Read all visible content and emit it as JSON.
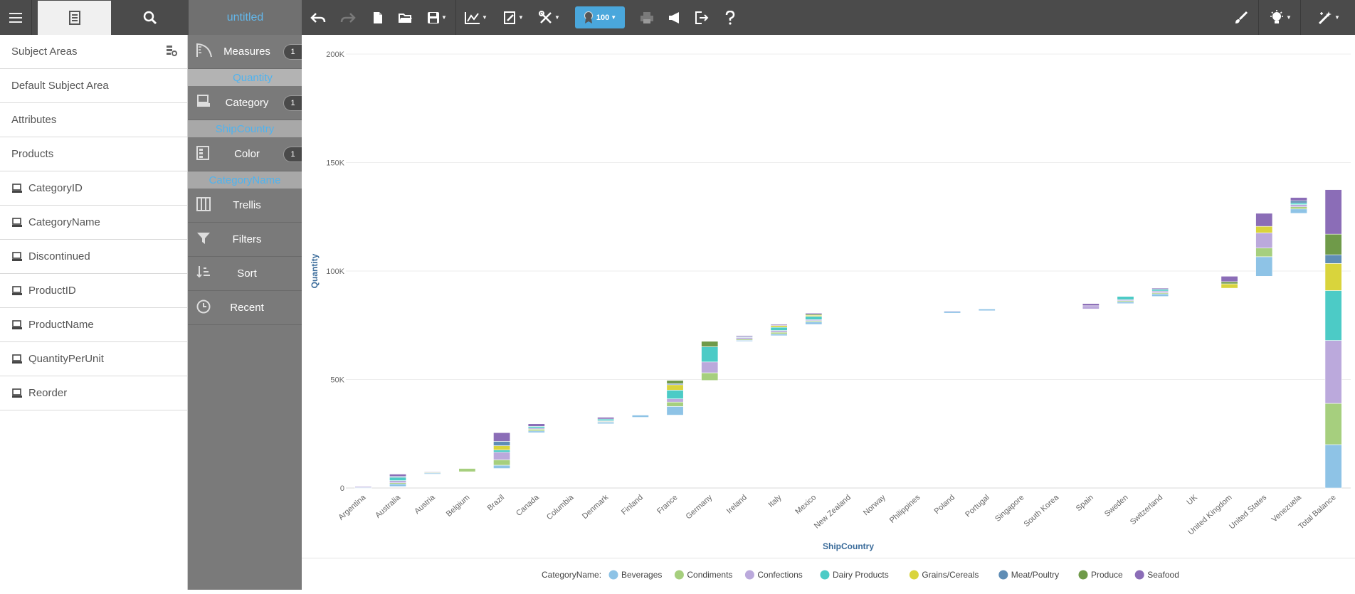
{
  "toolbar": {
    "title": "untitled",
    "badge_value": "100"
  },
  "left_panel": {
    "items": [
      {
        "label": "Subject Areas",
        "icon": "settings-gear-icon"
      },
      {
        "label": "Default Subject Area"
      },
      {
        "label": "Attributes"
      },
      {
        "label": "Products"
      },
      {
        "label": "CategoryID",
        "icon": "field-icon"
      },
      {
        "label": "CategoryName",
        "icon": "field-icon"
      },
      {
        "label": "Discontinued",
        "icon": "field-icon"
      },
      {
        "label": "ProductID",
        "icon": "field-icon"
      },
      {
        "label": "ProductName",
        "icon": "field-icon"
      },
      {
        "label": "QuantityPerUnit",
        "icon": "field-icon"
      },
      {
        "label": "Reorder",
        "icon": "field-icon"
      }
    ]
  },
  "shelves": {
    "measures": {
      "label": "Measures",
      "count": "1",
      "chip": "Quantity"
    },
    "category": {
      "label": "Category",
      "count": "1",
      "chip": "ShipCountry"
    },
    "color": {
      "label": "Color",
      "count": "1",
      "chip": "CategoryName"
    },
    "trellis": {
      "label": "Trellis"
    },
    "filters": {
      "label": "Filters"
    },
    "sort": {
      "label": "Sort"
    },
    "recent": {
      "label": "Recent"
    }
  },
  "colors": {
    "Beverages": "#8ec3e6",
    "Condiments": "#a6cf7e",
    "Confections": "#bba9dc",
    "Dairy Products": "#4ccbc6",
    "Grains/Cereals": "#d9d43c",
    "Meat/Poultry": "#5f8db5",
    "Produce": "#6f9a49",
    "Seafood": "#8b6db7",
    "accent": "#4aa7dc"
  },
  "chart_data": {
    "type": "bar",
    "subtype": "waterfall-stacked",
    "xlabel": "ShipCountry",
    "ylabel": "Quantity",
    "ylim": [
      0,
      200000
    ],
    "yticks": [
      "0",
      "50K",
      "100K",
      "150K",
      "200K"
    ],
    "grid": true,
    "legend_title": "CategoryName:",
    "legend_position": "bottom",
    "categories": [
      "Argentina",
      "Australia",
      "Austria",
      "Belgium",
      "Brazil",
      "Canada",
      "Columbia",
      "Denmark",
      "Finland",
      "France",
      "Germany",
      "Ireland",
      "Italy",
      "Mexico",
      "New Zealand",
      "Norway",
      "Philippines",
      "Poland",
      "Portugal",
      "Singapore",
      "South Korea",
      "Spain",
      "Sweden",
      "Switzerland",
      "UK",
      "United Kingdom",
      "United States",
      "Venezuela",
      "Total Balance"
    ],
    "series": [
      {
        "name": "Beverages",
        "values": [
          200,
          1200,
          500,
          0,
          1500,
          800,
          0,
          800,
          1000,
          4000,
          0,
          500,
          800,
          1200,
          0,
          0,
          0,
          800,
          800,
          0,
          0,
          0,
          800,
          1200,
          0,
          0,
          9000,
          2000,
          20000
        ]
      },
      {
        "name": "Condiments",
        "values": [
          0,
          500,
          300,
          1500,
          2500,
          800,
          0,
          300,
          0,
          2000,
          3500,
          500,
          800,
          500,
          0,
          0,
          0,
          0,
          0,
          0,
          0,
          0,
          500,
          500,
          0,
          0,
          4000,
          1000,
          19000
        ]
      },
      {
        "name": "Confections",
        "values": [
          500,
          1000,
          300,
          0,
          3500,
          500,
          0,
          300,
          0,
          1500,
          5000,
          800,
          800,
          500,
          0,
          0,
          0,
          300,
          0,
          0,
          0,
          1500,
          500,
          800,
          0,
          0,
          7000,
          1000,
          29000
        ]
      },
      {
        "name": "Dairy Products",
        "values": [
          0,
          1500,
          0,
          0,
          1000,
          800,
          0,
          800,
          0,
          4000,
          7000,
          300,
          1500,
          1500,
          0,
          0,
          0,
          0,
          0,
          0,
          0,
          0,
          1500,
          800,
          0,
          0,
          0,
          800,
          23000
        ]
      },
      {
        "name": "Grains/Cereals",
        "values": [
          0,
          0,
          0,
          0,
          2000,
          0,
          0,
          0,
          0,
          2500,
          0,
          0,
          800,
          500,
          0,
          0,
          0,
          0,
          0,
          0,
          0,
          0,
          0,
          0,
          0,
          2000,
          3000,
          0,
          12500
        ]
      },
      {
        "name": "Meat/Poultry",
        "values": [
          0,
          500,
          0,
          0,
          2000,
          0,
          0,
          0,
          0,
          500,
          0,
          0,
          0,
          0,
          0,
          0,
          0,
          0,
          0,
          0,
          0,
          0,
          0,
          0,
          0,
          0,
          0,
          1000,
          4000
        ]
      },
      {
        "name": "Produce",
        "values": [
          0,
          0,
          0,
          0,
          0,
          0,
          0,
          0,
          0,
          1500,
          2500,
          0,
          0,
          500,
          0,
          0,
          0,
          0,
          0,
          0,
          0,
          0,
          0,
          0,
          0,
          1000,
          0,
          0,
          9500
        ]
      },
      {
        "name": "Seafood",
        "values": [
          0,
          1000,
          0,
          0,
          4000,
          1200,
          0,
          800,
          0,
          0,
          0,
          500,
          500,
          500,
          0,
          0,
          0,
          0,
          0,
          0,
          0,
          1000,
          0,
          500,
          0,
          2500,
          6000,
          1500,
          20500
        ]
      }
    ]
  }
}
